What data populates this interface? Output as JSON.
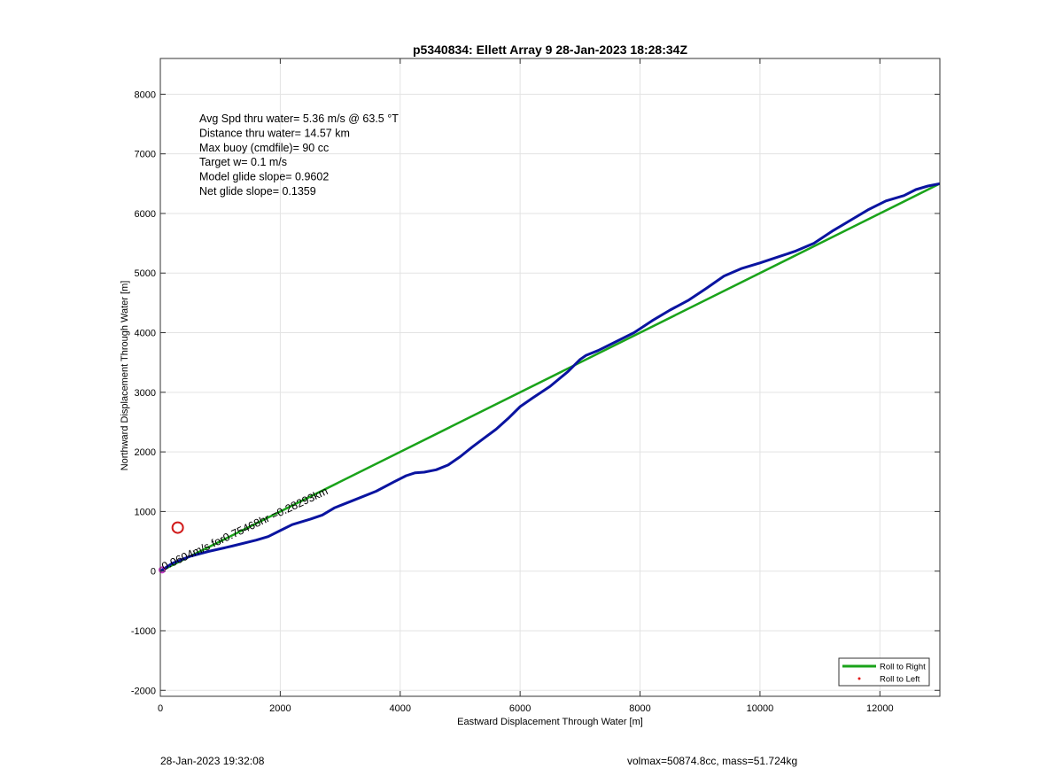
{
  "footer": {
    "left": "28-Jan-2023 19:32:08",
    "right": "volmax=50874.8cc, mass=51.724kg"
  },
  "chart_data": {
    "type": "line",
    "title": "p5340834: Ellett Array 9 28-Jan-2023 18:28:34Z",
    "xlabel": "Eastward Displacement Through Water [m]",
    "ylabel": "Northward Displacement Through Water [m]",
    "xlim": [
      0,
      13000
    ],
    "ylim": [
      -2100,
      8600
    ],
    "xticks": [
      0,
      2000,
      4000,
      6000,
      8000,
      10000,
      12000
    ],
    "yticks": [
      -2000,
      -1000,
      0,
      1000,
      2000,
      3000,
      4000,
      5000,
      6000,
      7000,
      8000
    ],
    "grid": true,
    "legend_position": "bottom-right",
    "legend": [
      {
        "label": "Roll to Right",
        "marker": "line",
        "color": "#1aa31a"
      },
      {
        "label": "Roll to Left",
        "marker": "dot",
        "color": "#e31a1a"
      }
    ],
    "info_lines": [
      "Avg Spd thru water=  5.36 m/s @  63.5 °T",
      "Distance thru water= 14.57 km",
      "Max buoy (cmdfile)= 90 cc",
      "Target w= 0.1 m/s",
      "Model glide slope= 0.9602",
      "Net glide slope= 0.1359"
    ],
    "current_annotation": "0.0604m/s for0.75468hr =0.28293km",
    "series": [
      {
        "color": "#1aa31a",
        "x": [
          0,
          13000
        ],
        "y": [
          0,
          6500
        ]
      },
      {
        "color": "#0a14a0",
        "x": [
          0,
          200,
          500,
          800,
          1200,
          1600,
          1800,
          2000,
          2200,
          2500,
          2700,
          2900,
          3200,
          3600,
          3900,
          4100,
          4250,
          4400,
          4600,
          4800,
          5000,
          5200,
          5400,
          5600,
          5800,
          6000,
          6200,
          6500,
          6800,
          7000,
          7100,
          7300,
          7600,
          7900,
          8200,
          8500,
          8800,
          9100,
          9400,
          9700,
          10000,
          10300,
          10600,
          10900,
          11200,
          11500,
          11800,
          12100,
          12400,
          12600,
          12800,
          13000
        ],
        "y": [
          0,
          130,
          250,
          330,
          420,
          520,
          580,
          680,
          780,
          870,
          940,
          1060,
          1180,
          1340,
          1500,
          1600,
          1650,
          1660,
          1700,
          1780,
          1920,
          2080,
          2230,
          2380,
          2560,
          2760,
          2900,
          3100,
          3350,
          3550,
          3620,
          3700,
          3850,
          4000,
          4200,
          4380,
          4540,
          4740,
          4950,
          5080,
          5170,
          5270,
          5370,
          5500,
          5700,
          5880,
          6060,
          6210,
          6300,
          6400,
          6460,
          6500
        ]
      }
    ],
    "points": [
      {
        "x": 290,
        "y": 730,
        "marker": "circle",
        "color": "#d11a1a"
      },
      {
        "x": 30,
        "y": 20,
        "marker": "circle",
        "color": "#cc33cc"
      }
    ]
  }
}
